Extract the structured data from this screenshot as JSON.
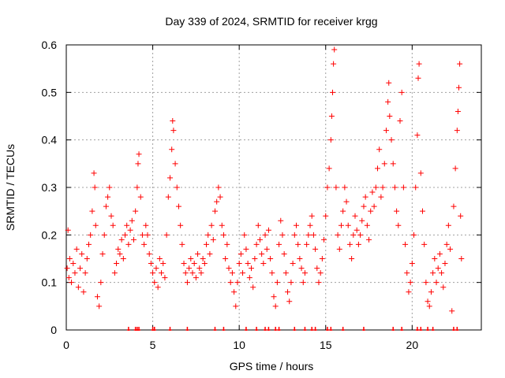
{
  "chart_data": {
    "type": "scatter",
    "title": "Day 339 of 2024, SRMTID for receiver krgg",
    "xlabel": "GPS time / hours",
    "ylabel": "SRMTID / TECUs",
    "xlim": [
      0,
      24
    ],
    "ylim": [
      0,
      0.6
    ],
    "xticks": [
      0,
      5,
      10,
      15,
      20
    ],
    "yticks": [
      0,
      0.1,
      0.2,
      0.3,
      0.4,
      0.5,
      0.6
    ],
    "xtick_labels": [
      "0",
      "5",
      "10",
      "15",
      "20"
    ],
    "ytick_labels": [
      "0",
      "0.1",
      "0.2",
      "0.3",
      "0.4",
      "0.5",
      "0.6"
    ],
    "grid": true,
    "marker": "+",
    "color": "#ff0000",
    "series": [
      {
        "name": "SRMTID",
        "points": [
          [
            0.05,
            0.13
          ],
          [
            0.1,
            0.21
          ],
          [
            0.15,
            0.11
          ],
          [
            0.2,
            0.15
          ],
          [
            0.3,
            0.1
          ],
          [
            0.4,
            0.14
          ],
          [
            0.5,
            0.12
          ],
          [
            0.6,
            0.17
          ],
          [
            0.7,
            0.09
          ],
          [
            0.8,
            0.13
          ],
          [
            0.9,
            0.16
          ],
          [
            1.0,
            0.08
          ],
          [
            1.1,
            0.12
          ],
          [
            1.2,
            0.15
          ],
          [
            1.3,
            0.18
          ],
          [
            1.4,
            0.2
          ],
          [
            1.5,
            0.25
          ],
          [
            1.6,
            0.33
          ],
          [
            1.65,
            0.3
          ],
          [
            1.7,
            0.22
          ],
          [
            1.8,
            0.07
          ],
          [
            1.9,
            0.05
          ],
          [
            2.0,
            0.1
          ],
          [
            2.1,
            0.16
          ],
          [
            2.2,
            0.2
          ],
          [
            2.3,
            0.26
          ],
          [
            2.4,
            0.28
          ],
          [
            2.5,
            0.3
          ],
          [
            2.6,
            0.24
          ],
          [
            2.7,
            0.22
          ],
          [
            2.8,
            0.12
          ],
          [
            2.9,
            0.14
          ],
          [
            3.0,
            0.17
          ],
          [
            3.1,
            0.16
          ],
          [
            3.2,
            0.19
          ],
          [
            3.3,
            0.15
          ],
          [
            3.4,
            0.2
          ],
          [
            3.5,
            0.22
          ],
          [
            3.6,
            0.18
          ],
          [
            3.7,
            0.21
          ],
          [
            3.8,
            0.23
          ],
          [
            3.9,
            0.19
          ],
          [
            4.0,
            0.25
          ],
          [
            4.1,
            0.3
          ],
          [
            4.15,
            0.35
          ],
          [
            4.2,
            0.37
          ],
          [
            4.3,
            0.28
          ],
          [
            4.4,
            0.2
          ],
          [
            4.5,
            0.18
          ],
          [
            4.6,
            0.22
          ],
          [
            4.7,
            0.2
          ],
          [
            4.8,
            0.16
          ],
          [
            4.9,
            0.14
          ],
          [
            5.0,
            0.12
          ],
          [
            5.1,
            0.1
          ],
          [
            5.2,
            0.13
          ],
          [
            5.3,
            0.09
          ],
          [
            5.4,
            0.15
          ],
          [
            5.5,
            0.12
          ],
          [
            5.6,
            0.14
          ],
          [
            5.7,
            0.11
          ],
          [
            5.8,
            0.2
          ],
          [
            5.9,
            0.28
          ],
          [
            6.0,
            0.32
          ],
          [
            6.1,
            0.38
          ],
          [
            6.15,
            0.44
          ],
          [
            6.2,
            0.42
          ],
          [
            6.3,
            0.35
          ],
          [
            6.4,
            0.3
          ],
          [
            6.5,
            0.26
          ],
          [
            6.6,
            0.22
          ],
          [
            6.7,
            0.18
          ],
          [
            6.8,
            0.14
          ],
          [
            6.9,
            0.12
          ],
          [
            7.0,
            0.1
          ],
          [
            7.1,
            0.13
          ],
          [
            7.2,
            0.15
          ],
          [
            7.3,
            0.12
          ],
          [
            7.4,
            0.14
          ],
          [
            7.5,
            0.11
          ],
          [
            7.6,
            0.16
          ],
          [
            7.7,
            0.13
          ],
          [
            7.8,
            0.12
          ],
          [
            7.9,
            0.15
          ],
          [
            8.0,
            0.14
          ],
          [
            8.1,
            0.18
          ],
          [
            8.2,
            0.2
          ],
          [
            8.3,
            0.16
          ],
          [
            8.4,
            0.22
          ],
          [
            8.5,
            0.19
          ],
          [
            8.6,
            0.25
          ],
          [
            8.7,
            0.27
          ],
          [
            8.8,
            0.3
          ],
          [
            8.9,
            0.28
          ],
          [
            9.0,
            0.22
          ],
          [
            9.1,
            0.2
          ],
          [
            9.2,
            0.15
          ],
          [
            9.3,
            0.18
          ],
          [
            9.4,
            0.13
          ],
          [
            9.5,
            0.1
          ],
          [
            9.6,
            0.12
          ],
          [
            9.7,
            0.08
          ],
          [
            9.8,
            0.05
          ],
          [
            9.9,
            0.1
          ],
          [
            10.0,
            0.14
          ],
          [
            10.1,
            0.16
          ],
          [
            10.2,
            0.12
          ],
          [
            10.3,
            0.2
          ],
          [
            10.4,
            0.17
          ],
          [
            10.5,
            0.14
          ],
          [
            10.6,
            0.11
          ],
          [
            10.7,
            0.13
          ],
          [
            10.8,
            0.09
          ],
          [
            10.9,
            0.15
          ],
          [
            11.0,
            0.18
          ],
          [
            11.1,
            0.22
          ],
          [
            11.2,
            0.19
          ],
          [
            11.3,
            0.16
          ],
          [
            11.4,
            0.14
          ],
          [
            11.5,
            0.2
          ],
          [
            11.6,
            0.17
          ],
          [
            11.7,
            0.21
          ],
          [
            11.8,
            0.15
          ],
          [
            11.9,
            0.12
          ],
          [
            12.0,
            0.07
          ],
          [
            12.1,
            0.05
          ],
          [
            12.2,
            0.1
          ],
          [
            12.3,
            0.18
          ],
          [
            12.4,
            0.23
          ],
          [
            12.5,
            0.2
          ],
          [
            12.6,
            0.16
          ],
          [
            12.7,
            0.12
          ],
          [
            12.8,
            0.08
          ],
          [
            12.9,
            0.06
          ],
          [
            13.0,
            0.1
          ],
          [
            13.1,
            0.14
          ],
          [
            13.2,
            0.2
          ],
          [
            13.3,
            0.22
          ],
          [
            13.4,
            0.18
          ],
          [
            13.5,
            0.15
          ],
          [
            13.6,
            0.13
          ],
          [
            13.7,
            0.1
          ],
          [
            13.8,
            0.12
          ],
          [
            13.9,
            0.18
          ],
          [
            14.0,
            0.2
          ],
          [
            14.1,
            0.22
          ],
          [
            14.2,
            0.24
          ],
          [
            14.3,
            0.2
          ],
          [
            14.4,
            0.17
          ],
          [
            14.5,
            0.13
          ],
          [
            14.6,
            0.1
          ],
          [
            14.7,
            0.12
          ],
          [
            14.8,
            0.15
          ],
          [
            14.9,
            0.19
          ],
          [
            15.0,
            0.24
          ],
          [
            15.1,
            0.3
          ],
          [
            15.2,
            0.34
          ],
          [
            15.3,
            0.4
          ],
          [
            15.35,
            0.45
          ],
          [
            15.4,
            0.5
          ],
          [
            15.45,
            0.56
          ],
          [
            15.5,
            0.59
          ],
          [
            15.6,
            0.3
          ],
          [
            15.7,
            0.2
          ],
          [
            15.8,
            0.17
          ],
          [
            15.9,
            0.22
          ],
          [
            16.0,
            0.25
          ],
          [
            16.1,
            0.3
          ],
          [
            16.2,
            0.27
          ],
          [
            16.3,
            0.22
          ],
          [
            16.4,
            0.18
          ],
          [
            16.5,
            0.15
          ],
          [
            16.6,
            0.2
          ],
          [
            16.7,
            0.24
          ],
          [
            16.8,
            0.21
          ],
          [
            16.9,
            0.18
          ],
          [
            17.0,
            0.2
          ],
          [
            17.1,
            0.23
          ],
          [
            17.2,
            0.26
          ],
          [
            17.3,
            0.28
          ],
          [
            17.4,
            0.22
          ],
          [
            17.5,
            0.19
          ],
          [
            17.6,
            0.25
          ],
          [
            17.7,
            0.29
          ],
          [
            17.8,
            0.26
          ],
          [
            17.9,
            0.3
          ],
          [
            18.0,
            0.34
          ],
          [
            18.1,
            0.38
          ],
          [
            18.2,
            0.28
          ],
          [
            18.3,
            0.3
          ],
          [
            18.4,
            0.35
          ],
          [
            18.5,
            0.42
          ],
          [
            18.6,
            0.48
          ],
          [
            18.65,
            0.52
          ],
          [
            18.7,
            0.45
          ],
          [
            18.8,
            0.4
          ],
          [
            18.9,
            0.35
          ],
          [
            19.0,
            0.3
          ],
          [
            19.1,
            0.25
          ],
          [
            19.2,
            0.22
          ],
          [
            19.3,
            0.44
          ],
          [
            19.4,
            0.5
          ],
          [
            19.5,
            0.3
          ],
          [
            19.6,
            0.18
          ],
          [
            19.7,
            0.12
          ],
          [
            19.8,
            0.08
          ],
          [
            19.9,
            0.1
          ],
          [
            20.0,
            0.14
          ],
          [
            20.1,
            0.2
          ],
          [
            20.2,
            0.3
          ],
          [
            20.3,
            0.41
          ],
          [
            20.35,
            0.53
          ],
          [
            20.4,
            0.56
          ],
          [
            20.5,
            0.33
          ],
          [
            20.6,
            0.25
          ],
          [
            20.7,
            0.18
          ],
          [
            20.8,
            0.1
          ],
          [
            20.9,
            0.06
          ],
          [
            21.0,
            0.05
          ],
          [
            21.1,
            0.08
          ],
          [
            21.2,
            0.12
          ],
          [
            21.3,
            0.15
          ],
          [
            21.4,
            0.1
          ],
          [
            21.5,
            0.13
          ],
          [
            21.6,
            0.16
          ],
          [
            21.7,
            0.12
          ],
          [
            21.8,
            0.09
          ],
          [
            21.9,
            0.14
          ],
          [
            22.0,
            0.18
          ],
          [
            22.1,
            0.22
          ],
          [
            22.2,
            0.17
          ],
          [
            22.3,
            0.04
          ],
          [
            22.4,
            0.26
          ],
          [
            22.5,
            0.34
          ],
          [
            22.6,
            0.42
          ],
          [
            22.65,
            0.46
          ],
          [
            22.7,
            0.51
          ],
          [
            22.75,
            0.56
          ],
          [
            22.8,
            0.24
          ],
          [
            22.85,
            0.15
          ]
        ]
      }
    ],
    "baseline_markers_x": [
      3.6,
      4.0,
      4.1,
      4.2,
      5.0,
      5.1,
      6.0,
      7.0,
      8.6,
      9.1,
      10.4,
      11.0,
      11.5,
      11.7,
      12.1,
      12.3,
      13.2,
      13.8,
      14.2,
      14.4,
      15.1,
      15.3,
      16.0,
      17.2,
      18.9,
      19.4,
      20.3,
      20.5,
      20.9,
      21.2,
      22.4,
      22.6
    ]
  }
}
